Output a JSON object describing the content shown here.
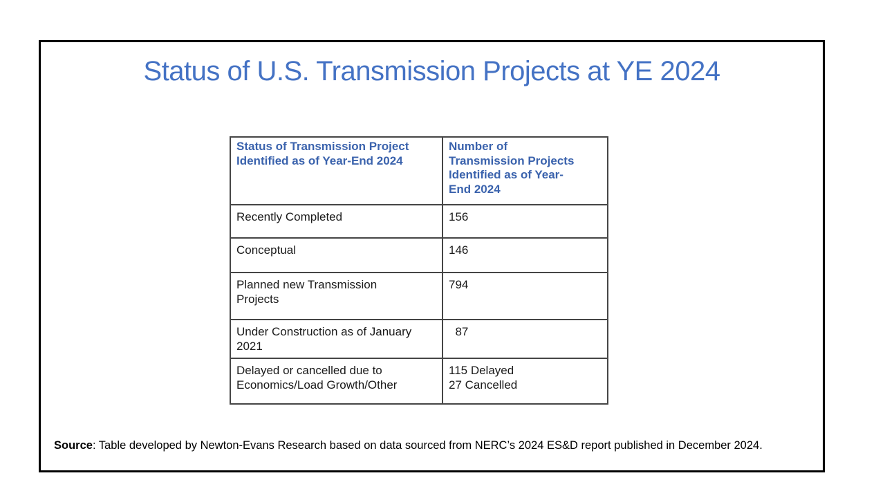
{
  "slide": {
    "title": "Status of U.S. Transmission Projects at YE 2024",
    "source_label": "Source",
    "source_text": ": Table developed by Newton-Evans Research based on data sourced from NERC’s 2024 ES&D report published in December 2024."
  },
  "table": {
    "columns": [
      {
        "header": "Status of Transmission Project\nIdentified as of Year-End 2024"
      },
      {
        "header": "Number of\nTransmission Projects\nIdentified as of Year-\nEnd 2024"
      }
    ],
    "rows": [
      {
        "status": "Recently Completed",
        "count": "156"
      },
      {
        "status": "Conceptual",
        "count": "146"
      },
      {
        "status": "Planned new Transmission\nProjects",
        "count": "794"
      },
      {
        "status": "Under Construction as of January\n2021",
        "count": "  87"
      },
      {
        "status": "Delayed or cancelled due to\nEconomics/Load Growth/Other",
        "count": "115 Delayed\n27 Cancelled"
      }
    ]
  },
  "colors": {
    "title_text": "#4472C4",
    "table_header_text": "#3B63AD",
    "body_text": "#1a1a1a",
    "table_border": "#454545",
    "frame_border": "#000000",
    "background": "#ffffff"
  }
}
